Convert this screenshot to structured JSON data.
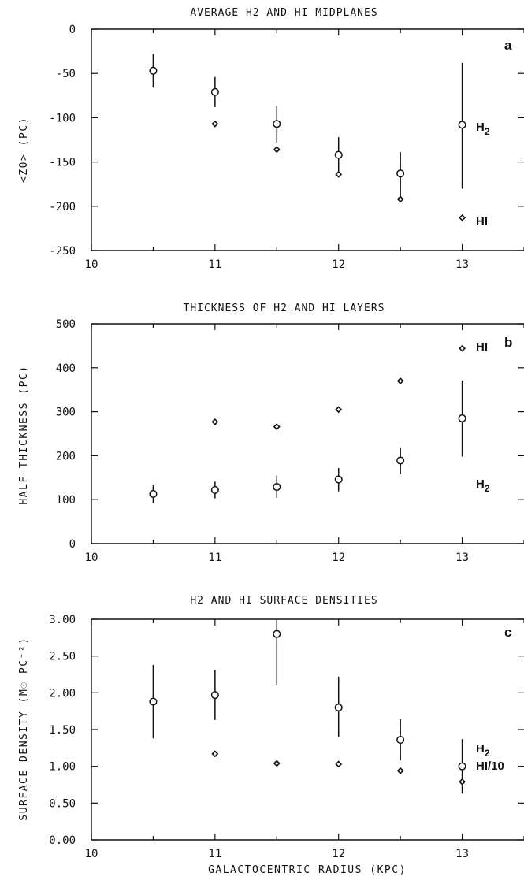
{
  "chart_data": [
    {
      "type": "scatter",
      "panel": "a",
      "title": "AVERAGE H2 AND HI MIDPLANES",
      "ylabel": "<Z0>  (PC)",
      "xlabel": "",
      "xlim": [
        10,
        13.5
      ],
      "ylim": [
        -250,
        0
      ],
      "xticks": [
        10,
        11,
        12,
        13
      ],
      "yticks": [
        0,
        -50,
        -100,
        -150,
        -200,
        -250
      ],
      "ytick_labels": [
        "0",
        "-50",
        "-100",
        "-150",
        "-200",
        "-250"
      ],
      "grid": false,
      "series": [
        {
          "name": "H2",
          "marker": "circle",
          "x": [
            10.5,
            11.0,
            11.5,
            12.0,
            12.5,
            13.0
          ],
          "y": [
            -47,
            -71,
            -107,
            -142,
            -163,
            -108
          ],
          "err_low": [
            -66,
            -88,
            -128,
            -165,
            -192,
            -180
          ],
          "err_high": [
            -28,
            -54,
            -87,
            -122,
            -139,
            -38
          ]
        },
        {
          "name": "HI",
          "marker": "diamond",
          "x": [
            11.0,
            11.5,
            12.0,
            12.5,
            13.0
          ],
          "y": [
            -107,
            -136,
            -164,
            -192,
            -213
          ]
        }
      ]
    },
    {
      "type": "scatter",
      "panel": "b",
      "title": "THICKNESS OF H2 AND HI LAYERS",
      "ylabel": "HALF-THICKNESS (PC)",
      "xlabel": "",
      "xlim": [
        10,
        13.5
      ],
      "ylim": [
        0,
        500
      ],
      "xticks": [
        10,
        11,
        12,
        13
      ],
      "yticks": [
        0,
        100,
        200,
        300,
        400,
        500
      ],
      "ytick_labels": [
        "0",
        "100",
        "200",
        "300",
        "400",
        "500"
      ],
      "grid": false,
      "series": [
        {
          "name": "H2",
          "marker": "circle",
          "x": [
            10.5,
            11.0,
            11.5,
            12.0,
            12.5,
            13.0
          ],
          "y": [
            113,
            122,
            129,
            146,
            189,
            285
          ],
          "err_low": [
            92,
            103,
            104,
            119,
            158,
            198
          ],
          "err_high": [
            134,
            141,
            155,
            172,
            219,
            371
          ]
        },
        {
          "name": "HI",
          "marker": "diamond",
          "x": [
            11.0,
            11.5,
            12.0,
            12.5,
            13.0
          ],
          "y": [
            277,
            266,
            305,
            370,
            444
          ]
        }
      ]
    },
    {
      "type": "scatter",
      "panel": "c",
      "title": "H2 AND HI SURFACE DENSITIES",
      "ylabel": "SURFACE DENSITY (M☉ PC⁻²)",
      "xlabel": "GALACTOCENTRIC RADIUS (KPC)",
      "xlim": [
        10,
        13.5
      ],
      "ylim": [
        0,
        3
      ],
      "xticks": [
        10,
        11,
        12,
        13
      ],
      "yticks": [
        0,
        0.5,
        1,
        1.5,
        2,
        2.5,
        3
      ],
      "ytick_labels": [
        "0.00",
        "0.50",
        "1.00",
        "1.50",
        "2.00",
        "2.50",
        "3.00"
      ],
      "grid": false,
      "series": [
        {
          "name": "H2",
          "marker": "circle",
          "x": [
            10.5,
            11.0,
            11.5,
            12.0,
            12.5,
            13.0
          ],
          "y": [
            1.88,
            1.97,
            2.8,
            1.8,
            1.36,
            1.0
          ],
          "err_low": [
            1.38,
            1.63,
            2.1,
            1.4,
            1.08,
            0.63
          ],
          "err_high": [
            2.38,
            2.31,
            3.0,
            2.22,
            1.64,
            1.37
          ]
        },
        {
          "name": "HI/10",
          "marker": "diamond",
          "x": [
            11.0,
            11.5,
            12.0,
            12.5,
            13.0
          ],
          "y": [
            1.17,
            1.04,
            1.03,
            0.94,
            0.79
          ]
        }
      ]
    }
  ],
  "annotations": {
    "panel_a": {
      "letter": "a",
      "h2_label": "H",
      "h2_sub": "2",
      "hi_label": "HI"
    },
    "panel_b": {
      "letter": "b",
      "h2_label": "H",
      "h2_sub": "2",
      "hi_label": "HI"
    },
    "panel_c": {
      "letter": "c",
      "h2_label": "H",
      "h2_sub": "2",
      "hi_label": "HI/10"
    }
  }
}
